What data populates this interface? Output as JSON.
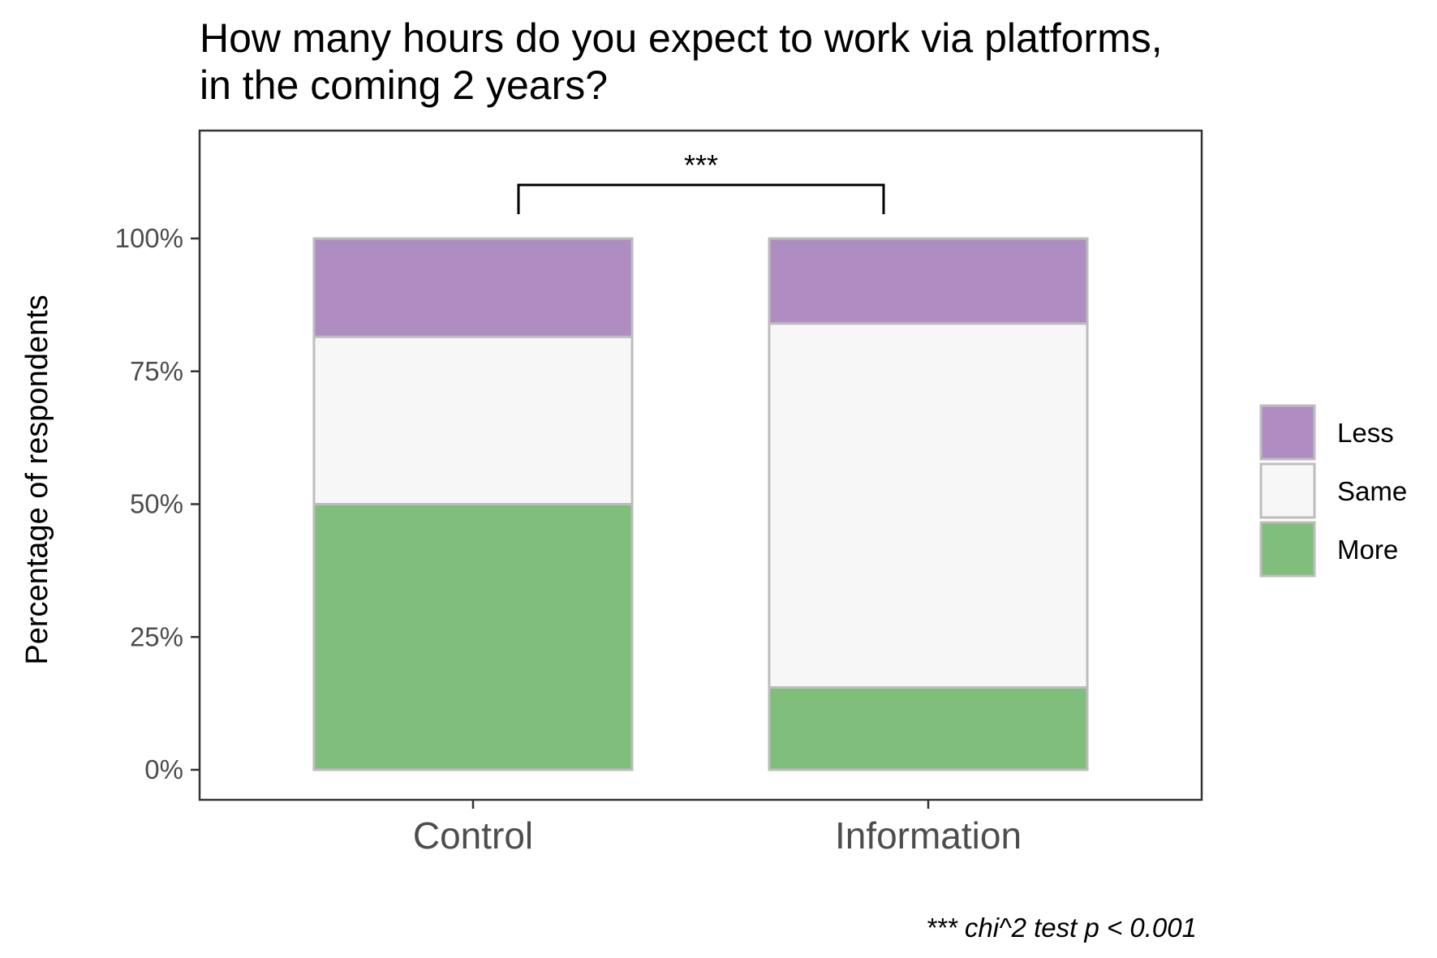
{
  "chart_data": {
    "type": "bar",
    "stacked": true,
    "title_lines": [
      "How many hours do you expect to work via platforms,",
      "in the coming 2 years?"
    ],
    "ylabel": "Percentage of respondents",
    "xlabel": "",
    "ylim": [
      0,
      1
    ],
    "y_ticks": [
      0,
      0.25,
      0.5,
      0.75,
      1.0
    ],
    "y_tick_labels": [
      "0%",
      "25%",
      "50%",
      "75%",
      "100%"
    ],
    "categories": [
      "Control",
      "Information"
    ],
    "series": [
      {
        "name": "More",
        "values": [
          0.5,
          0.155
        ],
        "color": "#7fbf7b"
      },
      {
        "name": "Same",
        "values": [
          0.315,
          0.685
        ],
        "color": "#f7f7f7"
      },
      {
        "name": "Less",
        "values": [
          0.185,
          0.16
        ],
        "color": "#af8dc3"
      }
    ],
    "legend": {
      "position": "right",
      "order": [
        "Less",
        "Same",
        "More"
      ]
    },
    "significance": {
      "label": "***",
      "between": [
        "Control",
        "Information"
      ]
    },
    "caption": "*** chi^2 test p < 0.001",
    "grid": false
  }
}
